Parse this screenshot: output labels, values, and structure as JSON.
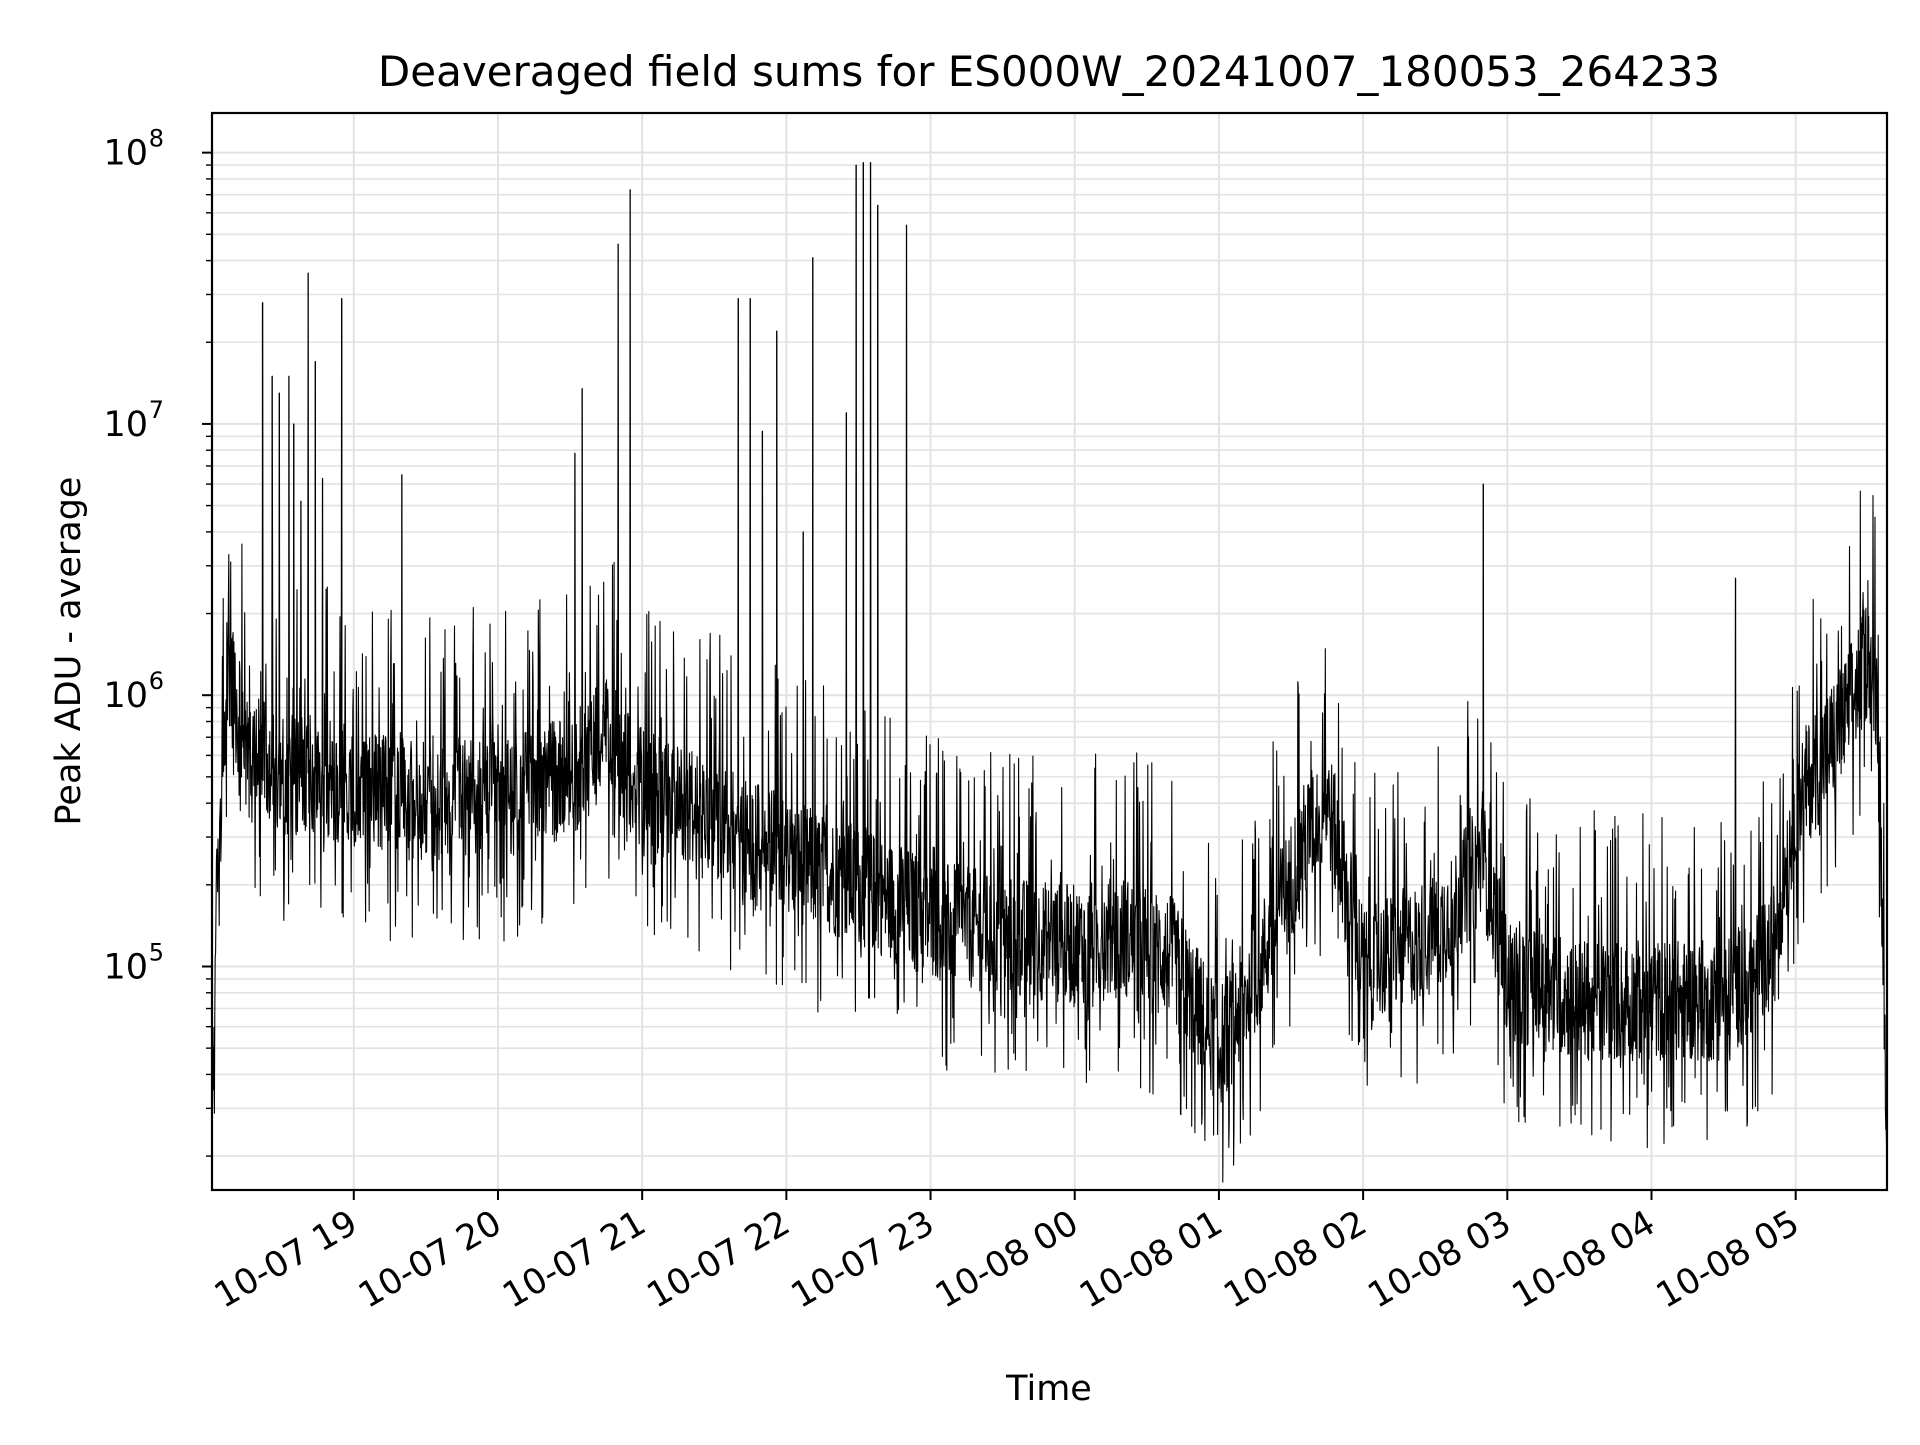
{
  "chart_data": {
    "type": "line",
    "title": "Deaveraged field sums for ES000W_20241007_180053_264233",
    "xlabel": "Time",
    "ylabel": "Peak ADU - average",
    "yscale": "log",
    "ylim": [
      15000,
      140000000
    ],
    "xlim": [
      "2024-10-07 18:01",
      "2024-10-08 05:38"
    ],
    "grid": "on",
    "line_color": "#000000",
    "y_ticks": [
      {
        "value": 100000,
        "base": "10",
        "exp": "5"
      },
      {
        "value": 1000000,
        "base": "10",
        "exp": "6"
      },
      {
        "value": 10000000,
        "base": "10",
        "exp": "7"
      },
      {
        "value": 100000000,
        "base": "10",
        "exp": "8"
      }
    ],
    "x_ticks": [
      {
        "label": "10-07 19",
        "time": "2024-10-07 19:00"
      },
      {
        "label": "10-07 20",
        "time": "2024-10-07 20:00"
      },
      {
        "label": "10-07 21",
        "time": "2024-10-07 21:00"
      },
      {
        "label": "10-07 22",
        "time": "2024-10-07 22:00"
      },
      {
        "label": "10-07 23",
        "time": "2024-10-07 23:00"
      },
      {
        "label": "10-08 00",
        "time": "2024-10-08 00:00"
      },
      {
        "label": "10-08 01",
        "time": "2024-10-08 01:00"
      },
      {
        "label": "10-08 02",
        "time": "2024-10-08 02:00"
      },
      {
        "label": "10-08 03",
        "time": "2024-10-08 03:00"
      },
      {
        "label": "10-08 04",
        "time": "2024-10-08 04:00"
      },
      {
        "label": "10-08 05",
        "time": "2024-10-08 05:00"
      }
    ],
    "baseline": [
      [
        "2024-10-07 18:01",
        40000
      ],
      [
        "2024-10-07 18:03",
        170000
      ],
      [
        "2024-10-07 18:06",
        700000
      ],
      [
        "2024-10-07 18:09",
        1100000
      ],
      [
        "2024-10-07 18:15",
        650000
      ],
      [
        "2024-10-07 18:30",
        500000
      ],
      [
        "2024-10-07 18:45",
        520000
      ],
      [
        "2024-10-07 19:00",
        450000
      ],
      [
        "2024-10-07 19:30",
        430000
      ],
      [
        "2024-10-07 20:00",
        420000
      ],
      [
        "2024-10-07 20:30",
        500000
      ],
      [
        "2024-10-07 20:45",
        700000
      ],
      [
        "2024-10-07 21:00",
        450000
      ],
      [
        "2024-10-07 21:30",
        350000
      ],
      [
        "2024-10-07 22:00",
        250000
      ],
      [
        "2024-10-07 22:30",
        200000
      ],
      [
        "2024-10-07 23:00",
        150000
      ],
      [
        "2024-10-07 23:30",
        130000
      ],
      [
        "2024-10-08 00:00",
        120000
      ],
      [
        "2024-10-08 00:20",
        130000
      ],
      [
        "2024-10-08 00:40",
        110000
      ],
      [
        "2024-10-08 01:00",
        50000
      ],
      [
        "2024-10-08 01:15",
        90000
      ],
      [
        "2024-10-08 01:35",
        280000
      ],
      [
        "2024-10-08 01:45",
        420000
      ],
      [
        "2024-10-08 02:00",
        100000
      ],
      [
        "2024-10-08 02:30",
        130000
      ],
      [
        "2024-10-08 02:50",
        250000
      ],
      [
        "2024-10-08 03:00",
        90000
      ],
      [
        "2024-10-08 03:30",
        75000
      ],
      [
        "2024-10-08 04:00",
        75000
      ],
      [
        "2024-10-08 04:30",
        75000
      ],
      [
        "2024-10-08 04:50",
        110000
      ],
      [
        "2024-10-08 05:00",
        400000
      ],
      [
        "2024-10-08 05:20",
        800000
      ],
      [
        "2024-10-08 05:30",
        1400000
      ],
      [
        "2024-10-08 05:34",
        1000000
      ],
      [
        "2024-10-08 05:37",
        70000
      ],
      [
        "2024-10-08 05:38",
        25000
      ]
    ],
    "peaks": [
      [
        "2024-10-07 18:22",
        28000000
      ],
      [
        "2024-10-07 18:26",
        15000000
      ],
      [
        "2024-10-07 18:29",
        13000000
      ],
      [
        "2024-10-07 18:33",
        15000000
      ],
      [
        "2024-10-07 18:35",
        10000000
      ],
      [
        "2024-10-07 18:38",
        5200000
      ],
      [
        "2024-10-07 18:41",
        36000000
      ],
      [
        "2024-10-07 18:44",
        17000000
      ],
      [
        "2024-10-07 18:47",
        6300000
      ],
      [
        "2024-10-07 18:55",
        29000000
      ],
      [
        "2024-10-07 19:20",
        6500000
      ],
      [
        "2024-10-07 20:32",
        7800000
      ],
      [
        "2024-10-07 20:35",
        13500000
      ],
      [
        "2024-10-07 20:50",
        46000000
      ],
      [
        "2024-10-07 20:55",
        73000000
      ],
      [
        "2024-10-07 21:40",
        29000000
      ],
      [
        "2024-10-07 21:45",
        29000000
      ],
      [
        "2024-10-07 21:50",
        9400000
      ],
      [
        "2024-10-07 21:56",
        22000000
      ],
      [
        "2024-10-07 22:07",
        4000000
      ],
      [
        "2024-10-07 22:11",
        41000000
      ],
      [
        "2024-10-07 22:25",
        11000000
      ],
      [
        "2024-10-07 22:29",
        90000000
      ],
      [
        "2024-10-07 22:32",
        92000000
      ],
      [
        "2024-10-07 22:35",
        92000000
      ],
      [
        "2024-10-07 22:38",
        64000000
      ],
      [
        "2024-10-07 22:50",
        54000000
      ],
      [
        "2024-10-08 02:50",
        6000000
      ],
      [
        "2024-10-08 04:35",
        2700000
      ]
    ]
  }
}
